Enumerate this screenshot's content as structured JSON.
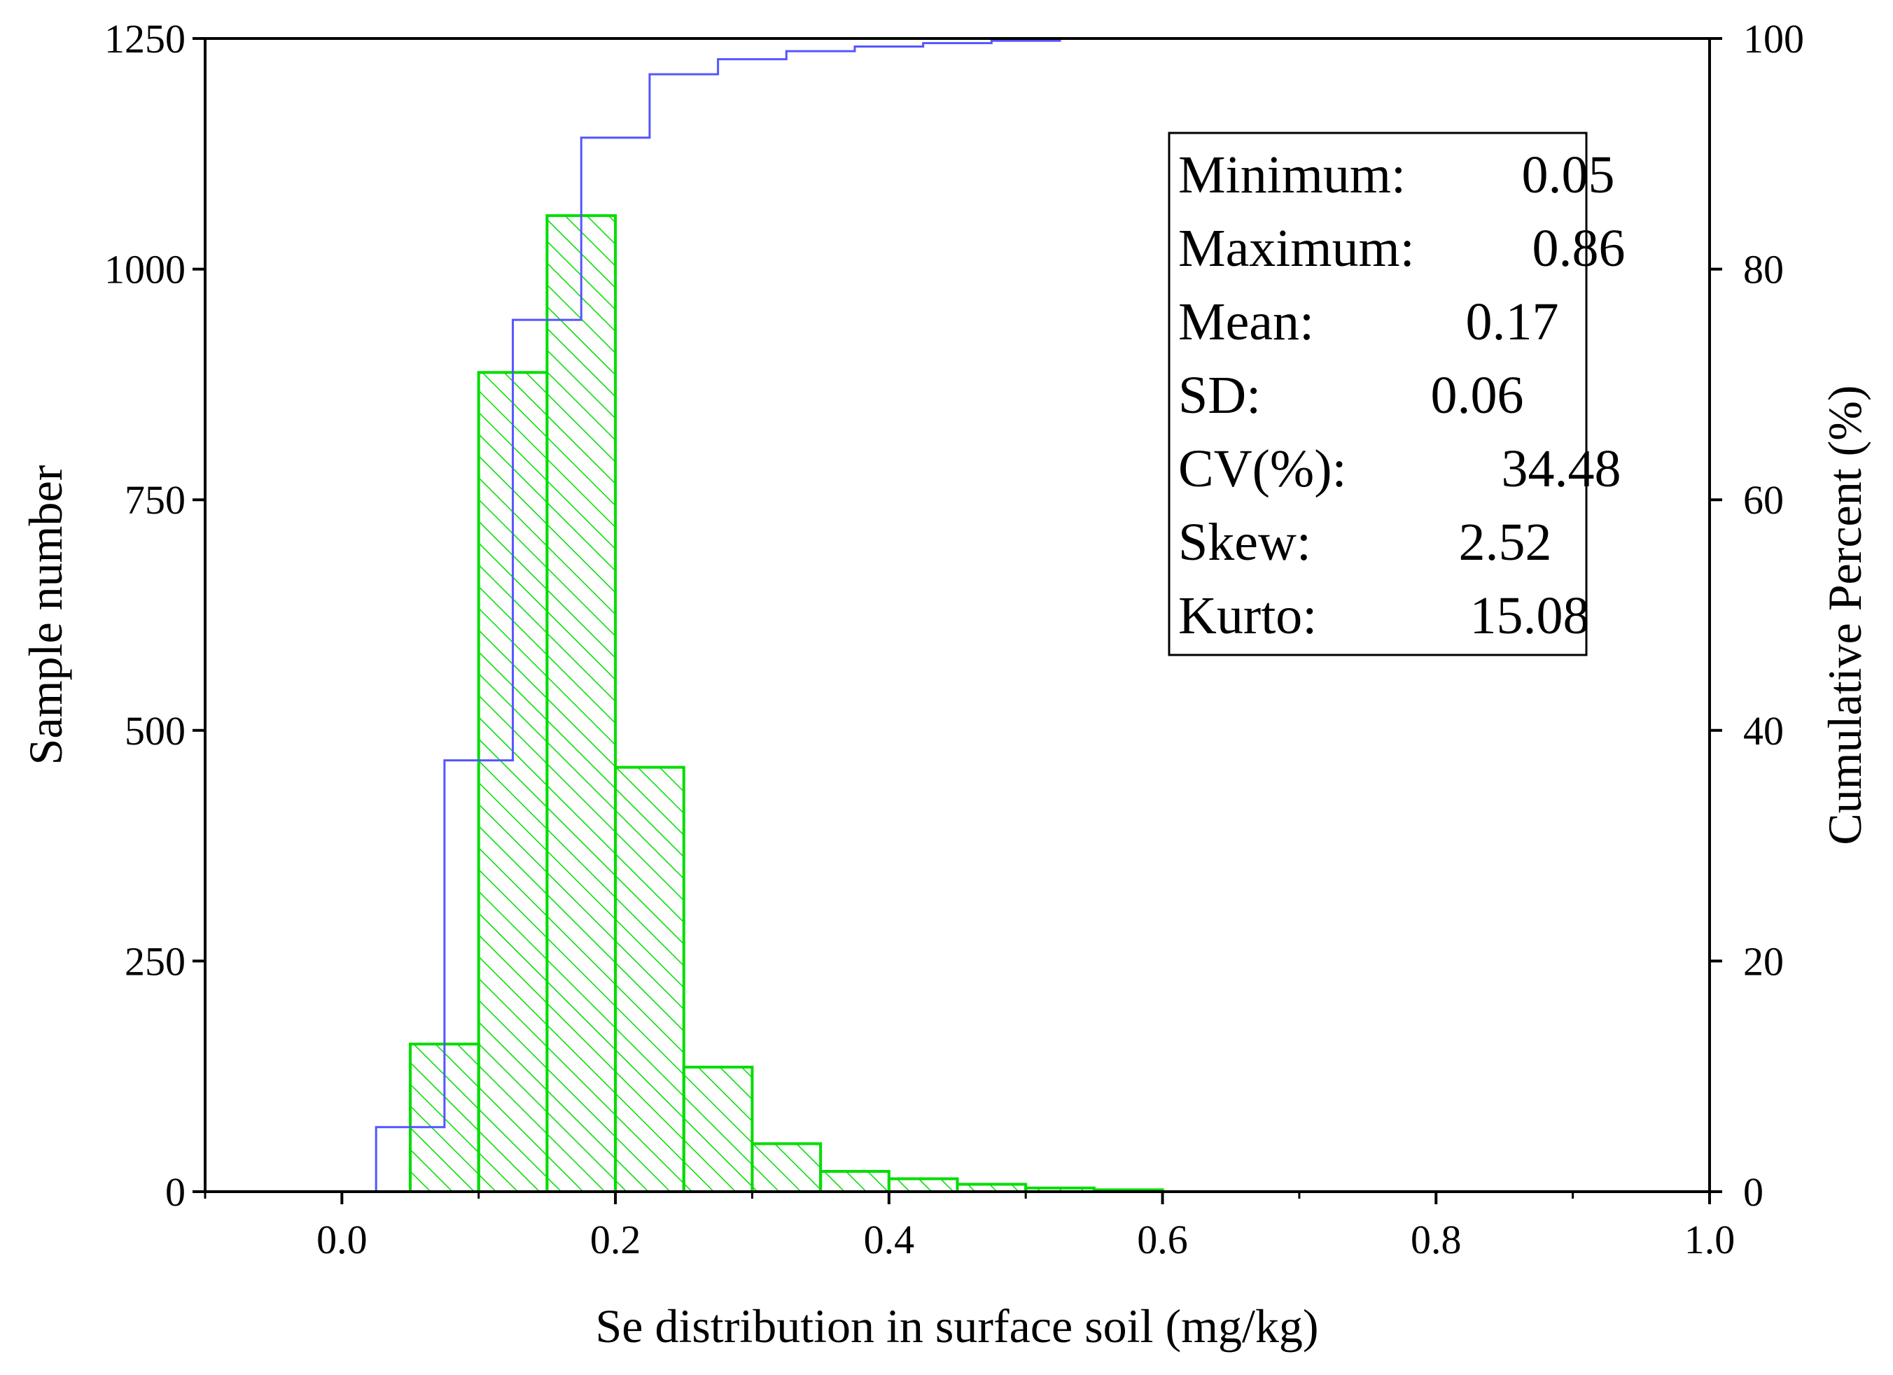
{
  "chart_data": {
    "type": "histogram",
    "xlabel": "Se distribution in surface soil (mg/kg)",
    "ylabel": "Sample number",
    "y2label": "Cumulative  Percent (%)",
    "xlim": [
      -0.1,
      1.0
    ],
    "ylim": [
      0,
      1250
    ],
    "y2lim": [
      0,
      100
    ],
    "x_ticks": [
      "0.0",
      "0.2",
      "0.4",
      "0.6",
      "0.8",
      "1.0"
    ],
    "y_ticks": [
      "0",
      "250",
      "500",
      "750",
      "1000",
      "1250"
    ],
    "y2_ticks": [
      "0",
      "20",
      "40",
      "60",
      "80",
      "100"
    ],
    "bins": [
      {
        "start": 0.05,
        "end": 0.1,
        "count": 160
      },
      {
        "start": 0.1,
        "end": 0.15,
        "count": 888
      },
      {
        "start": 0.15,
        "end": 0.2,
        "count": 1058
      },
      {
        "start": 0.2,
        "end": 0.25,
        "count": 460
      },
      {
        "start": 0.25,
        "end": 0.3,
        "count": 135
      },
      {
        "start": 0.3,
        "end": 0.35,
        "count": 52
      },
      {
        "start": 0.35,
        "end": 0.4,
        "count": 22
      },
      {
        "start": 0.4,
        "end": 0.45,
        "count": 14
      },
      {
        "start": 0.45,
        "end": 0.5,
        "count": 8
      },
      {
        "start": 0.5,
        "end": 0.55,
        "count": 4
      },
      {
        "start": 0.55,
        "end": 0.6,
        "count": 2
      }
    ],
    "cumulative": {
      "x": [
        0.025,
        0.05,
        0.075,
        0.1,
        0.125,
        0.15,
        0.175,
        0.2,
        0.225,
        0.25,
        0.275,
        0.3,
        0.325,
        0.35,
        0.375,
        0.4,
        0.425,
        0.45,
        0.475,
        0.5,
        0.525,
        0.55
      ],
      "y": [
        5.6,
        5.6,
        37.4,
        37.4,
        75.6,
        75.6,
        91.4,
        91.4,
        96.9,
        96.9,
        98.2,
        98.2,
        98.9,
        98.9,
        99.3,
        99.3,
        99.6,
        99.6,
        99.8,
        99.8,
        100,
        100
      ]
    },
    "colors": {
      "bar": "#00dd00",
      "cumulative_line": "#5555ff",
      "axis": "#000000"
    },
    "stats": [
      {
        "label": "Minimum:",
        "value": "0.05"
      },
      {
        "label": "Maximum:",
        "value": "0.86"
      },
      {
        "label": "Mean:",
        "value": "0.17"
      },
      {
        "label": "SD:",
        "value": "0.06"
      },
      {
        "label": "CV(%):",
        "value": "34.48"
      },
      {
        "label": "Skew:",
        "value": "2.52"
      },
      {
        "label": "Kurto:",
        "value": "15.08"
      }
    ]
  }
}
